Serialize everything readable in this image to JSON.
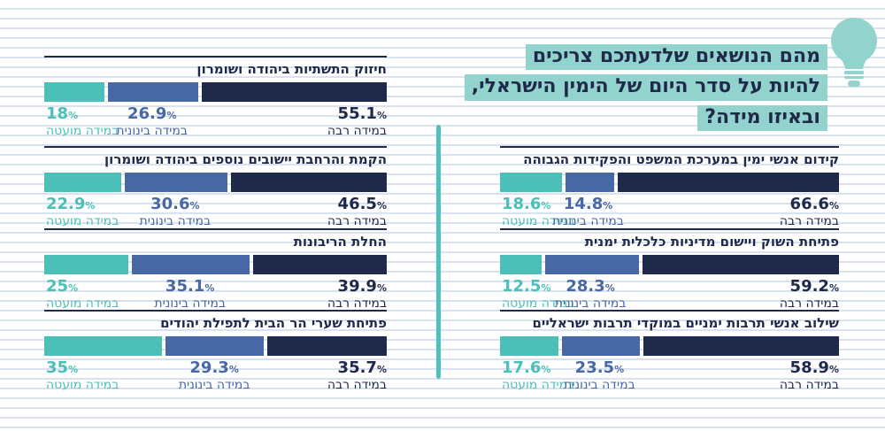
{
  "title": {
    "lines": [
      "מהם הנושאים שלדעתכם צריכים",
      "להיות על סדר היום של הימין הישראלי,",
      "ובאיזו מידה?"
    ],
    "highlight_color": "#93d3ce",
    "text_color": "#1f2a4b"
  },
  "icons": {
    "lightbulb": "lightbulb-icon",
    "lightbulb_color": "#93d3ce"
  },
  "divider_color": "#4fc1c3",
  "stripe_color": "#d9e3ef",
  "percent_sign": "%",
  "legend": {
    "low": "במידה מועטה",
    "mid": "במידה בינונית",
    "high": "במידה רבה"
  },
  "colors": {
    "low": "#4bbfb8",
    "mid": "#4768a4",
    "high": "#1f2a4b"
  },
  "chart_data": [
    {
      "type": "bar",
      "column": "left",
      "row": 0,
      "title": "חיזוק התשתיות ביהודה ושומרון",
      "categories": [
        "במידה מועטה",
        "במידה בינונית",
        "במידה רבה"
      ],
      "values": [
        18,
        26.9,
        55.1
      ],
      "value_labels": [
        "18",
        "26.9",
        "55.1"
      ]
    },
    {
      "type": "bar",
      "column": "left",
      "row": 1,
      "title": "הקמת והרחבת יישובים נוספים ביהודה ושומרון",
      "categories": [
        "במידה מועטה",
        "במידה בינונית",
        "במידה רבה"
      ],
      "values": [
        22.9,
        30.6,
        46.5
      ],
      "value_labels": [
        "22.9",
        "30.6",
        "46.5"
      ]
    },
    {
      "type": "bar",
      "column": "left",
      "row": 2,
      "title": "החלת הריבונות",
      "categories": [
        "במידה מועטה",
        "במידה בינונית",
        "במידה רבה"
      ],
      "values": [
        25,
        35.1,
        39.9
      ],
      "value_labels": [
        "25",
        "35.1",
        "39.9"
      ]
    },
    {
      "type": "bar",
      "column": "left",
      "row": 3,
      "title": "פתיחת שערי הר הבית לתפילת יהודים",
      "categories": [
        "במידה מועטה",
        "במידה בינונית",
        "במידה רבה"
      ],
      "values": [
        35,
        29.3,
        35.7
      ],
      "value_labels": [
        "35",
        "29.3",
        "35.7"
      ]
    },
    {
      "type": "bar",
      "column": "right",
      "row": 0,
      "title": "קידום אנשי ימין במערכת המשפט והפקידות הגבוהה",
      "categories": [
        "במידה מועטה",
        "במידה בינונית",
        "במידה רבה"
      ],
      "values": [
        18.6,
        14.8,
        66.6
      ],
      "value_labels": [
        "18.6",
        "14.8",
        "66.6"
      ]
    },
    {
      "type": "bar",
      "column": "right",
      "row": 1,
      "title": "פתיחת השוק ויישום מדיניות כלכלית ימנית",
      "categories": [
        "במידה מועטה",
        "במידה בינונית",
        "במידה רבה"
      ],
      "values": [
        12.5,
        28.3,
        59.2
      ],
      "value_labels": [
        "12.5",
        "28.3",
        "59.2"
      ]
    },
    {
      "type": "bar",
      "column": "right",
      "row": 2,
      "title": "שילוב אנשי תרבות ימניים במוקדי תרבות ישראליים",
      "categories": [
        "במידה מועטה",
        "במידה בינונית",
        "במידה רבה"
      ],
      "values": [
        17.6,
        23.5,
        58.9
      ],
      "value_labels": [
        "17.6",
        "23.5",
        "58.9"
      ]
    }
  ]
}
